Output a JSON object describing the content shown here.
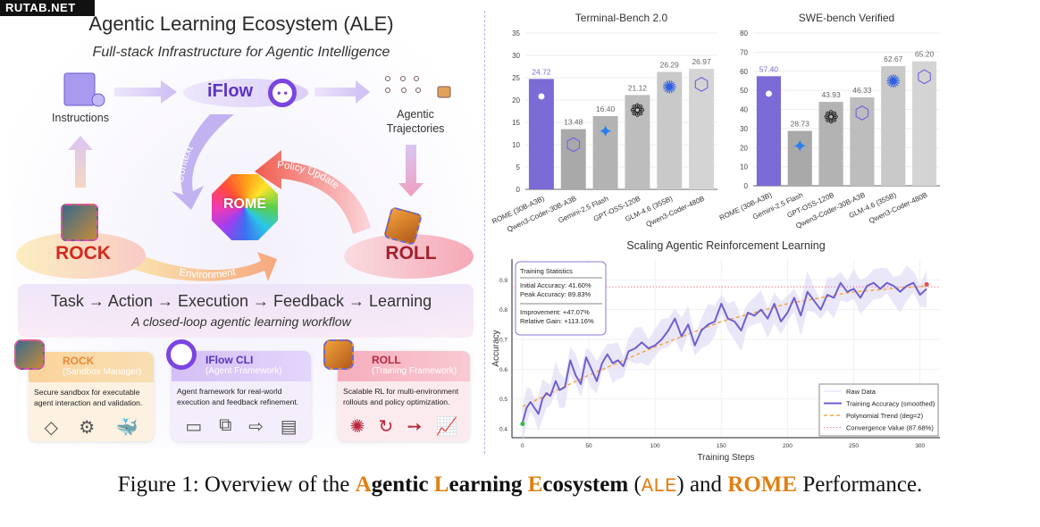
{
  "watermark": "RUTAB.NET",
  "diagram": {
    "title": "Agentic Learning Ecosystem (ALE)",
    "subtitle": "Full-stack Infrastructure for Agentic Intelligence",
    "instructions": "Instructions",
    "iflow": "iFlow",
    "trajectories_line1": "Agentic",
    "trajectories_line2": "Trajectories",
    "rock": "ROCK",
    "roll": "ROLL",
    "rome": "ROME",
    "arrow_context": "Context",
    "arrow_policy": "Policy Update",
    "arrow_environment": "Environment",
    "flow": "Task → Action → Execution → Feedback → Learning",
    "flow_sub": "A closed-loop agentic learning workflow",
    "cards": [
      {
        "title": "ROCK",
        "subtitle": "(Sandbox Manager)",
        "body": "Secure sandbox for executable agent interaction and validation.",
        "icons": [
          "sandbox-icon",
          "robot-arm-icon",
          "docker-whale-icon"
        ]
      },
      {
        "title": "IFlow CLI",
        "subtitle": "(Agent Framework)",
        "body": "Agent framework for real-world execution and feedback refinement.",
        "icons": [
          "developer-screen-icon",
          "hierarchy-icon",
          "arrow-right-icon",
          "document-rocket-icon"
        ]
      },
      {
        "title": "ROLL",
        "subtitle": "(Training Framework)",
        "body": "Scalable RL for multi-environment rollouts and policy optimization.",
        "icons": [
          "network-icon",
          "clock-cycle-icon",
          "arrow-right-icon",
          "bar-growth-icon"
        ]
      }
    ]
  },
  "colors": {
    "rome": "#7b6bd6",
    "accent": "#e07f12",
    "trend": "#f5a742",
    "smoothed": "#6f5fd0",
    "convergence": "#f07a8a"
  },
  "chart_data": [
    {
      "type": "bar",
      "title": "Terminal-Bench 2.0",
      "categories": [
        "ROME (30B-A3B)",
        "Qwen3-Coder-30B-A3B",
        "Gemini-2.5 Flash",
        "GPT-OSS-120B",
        "GLM-4.6 (355B)",
        "Qwen3-Coder-480B"
      ],
      "values": [
        24.72,
        13.48,
        16.4,
        21.12,
        26.29,
        26.97
      ],
      "labels": [
        "24.72",
        "13.48",
        "16.40",
        "21.12",
        "26.29",
        "26.97"
      ],
      "ylim": [
        0,
        35
      ],
      "yticks": [
        0,
        5,
        10,
        15,
        20,
        25,
        30,
        35
      ],
      "icons": [
        "rome",
        "qwen",
        "gemini",
        "openai",
        "glm",
        "qwen"
      ]
    },
    {
      "type": "bar",
      "title": "SWE-bench Verified",
      "categories": [
        "ROME (30B-A3B)",
        "Gemini-2.5 Flash",
        "GPT-OSS-120B",
        "Qwen3-Coder-30B-A3B",
        "GLM-4.6 (355B)",
        "Qwen3-Coder-480B"
      ],
      "values": [
        57.4,
        28.73,
        43.93,
        46.33,
        62.67,
        65.2
      ],
      "labels": [
        "57.40",
        "28.73",
        "43.93",
        "46.33",
        "62.67",
        "65.20"
      ],
      "ylim": [
        0,
        80
      ],
      "yticks": [
        0,
        10,
        20,
        30,
        40,
        50,
        60,
        70,
        80
      ],
      "icons": [
        "rome",
        "gemini",
        "openai",
        "qwen",
        "glm",
        "qwen"
      ]
    },
    {
      "type": "line",
      "title": "Scaling Agentic Reinforcement Learning",
      "xlabel": "Training Steps",
      "ylabel": "Accuracy",
      "xlim": [
        -8,
        315
      ],
      "ylim": [
        0.37,
        0.97
      ],
      "xticks": [
        0,
        50,
        100,
        150,
        200,
        250,
        300
      ],
      "yticks": [
        0.4,
        0.5,
        0.6,
        0.7,
        0.8,
        0.9
      ],
      "smoothed": {
        "x": [
          0,
          3,
          6,
          9,
          12,
          15,
          18,
          21,
          25,
          28,
          32,
          36,
          40,
          44,
          48,
          52,
          56,
          60,
          64,
          68,
          72,
          76,
          80,
          85,
          90,
          95,
          100,
          105,
          110,
          115,
          120,
          125,
          130,
          135,
          140,
          145,
          150,
          155,
          160,
          165,
          170,
          175,
          180,
          185,
          190,
          195,
          200,
          205,
          210,
          215,
          220,
          225,
          230,
          235,
          240,
          245,
          250,
          255,
          260,
          265,
          270,
          275,
          280,
          285,
          290,
          295,
          300,
          305
        ],
        "y": [
          0.42,
          0.47,
          0.49,
          0.47,
          0.45,
          0.5,
          0.52,
          0.51,
          0.56,
          0.53,
          0.54,
          0.63,
          0.58,
          0.55,
          0.64,
          0.6,
          0.56,
          0.62,
          0.65,
          0.62,
          0.63,
          0.61,
          0.66,
          0.67,
          0.69,
          0.67,
          0.68,
          0.7,
          0.73,
          0.77,
          0.71,
          0.75,
          0.68,
          0.73,
          0.75,
          0.76,
          0.82,
          0.77,
          0.76,
          0.73,
          0.79,
          0.78,
          0.8,
          0.77,
          0.82,
          0.76,
          0.79,
          0.84,
          0.78,
          0.86,
          0.83,
          0.8,
          0.85,
          0.84,
          0.89,
          0.86,
          0.87,
          0.84,
          0.88,
          0.89,
          0.87,
          0.89,
          0.88,
          0.86,
          0.88,
          0.89,
          0.85,
          0.87
        ]
      },
      "trend": {
        "x": [
          0,
          50,
          100,
          150,
          200,
          250,
          305
        ],
        "y": [
          0.475,
          0.58,
          0.675,
          0.76,
          0.82,
          0.86,
          0.88
        ]
      },
      "raw_band": 0.05,
      "convergence": 0.8768,
      "start_point": [
        0,
        0.416
      ],
      "end_point": [
        305,
        0.885
      ],
      "stats": {
        "title": "Training Statistics",
        "initial": "Initial Accuracy: 41.60%",
        "peak": "Peak Accuracy:    89.83%",
        "improvement": "Improvement: +47.07%",
        "gain": "Relative Gain: +113.16%"
      },
      "legend": [
        "Raw Data",
        "Training Accuracy (smoothed)",
        "Polynomial Trend (deg=2)",
        "Convergence Value (87.68%)"
      ],
      "legend_position": "bottom-right"
    }
  ],
  "caption": {
    "prefix": "Figure 1: Overview of the ",
    "a": "A",
    "gentic": "gentic ",
    "l": "L",
    "earning": "earning ",
    "e": "E",
    "cosystem": "cosystem",
    "paren_open": " (",
    "ale": "ALE",
    "paren_close": ") and ",
    "rome": "ROME",
    "suffix": " Performance."
  }
}
